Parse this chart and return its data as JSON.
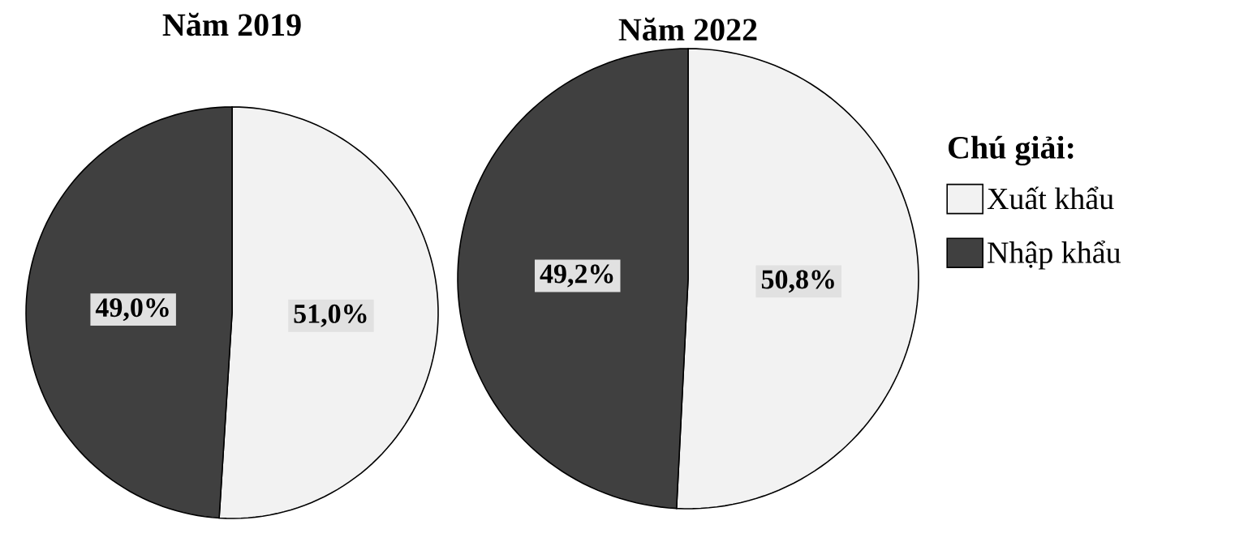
{
  "chart_data": [
    {
      "type": "pie",
      "title": "Năm 2019",
      "categories": [
        null,
        null
      ],
      "values": [
        51.0,
        49.0
      ],
      "colors": [
        "#f2f2f2",
        "#404040"
      ],
      "value_labels": [
        "51,0%",
        "49,0%"
      ]
    },
    {
      "type": "pie",
      "title": "Năm 2022",
      "categories": [
        "Xuất khẩu",
        "Nhập khẩu"
      ],
      "values": [
        50.8,
        49.2
      ],
      "colors": [
        "#f2f2f2",
        "#404040"
      ],
      "value_labels": [
        "50,8%",
        "49,2%"
      ],
      "legend": "right",
      "legend_title": "Chú giải:"
    }
  ]
}
